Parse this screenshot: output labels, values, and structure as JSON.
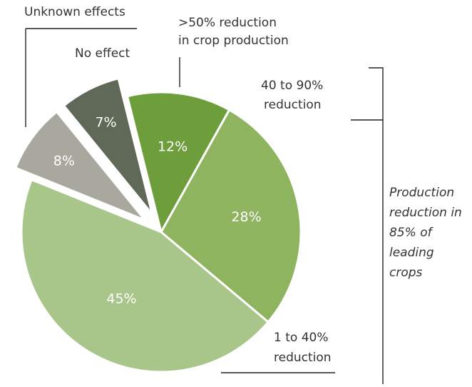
{
  "chart_data": {
    "type": "pie",
    "slices": [
      {
        "label": ">50% reduction in crop production",
        "value": 12,
        "display": "12%",
        "color": "#6e9e3c"
      },
      {
        "label": "40 to 90% reduction",
        "value": 28,
        "display": "28%",
        "color": "#8fb460"
      },
      {
        "label": "1 to 40% reduction",
        "value": 45,
        "display": "45%",
        "color": "#a8c58a"
      },
      {
        "label": "Unknown effects",
        "value": 8,
        "display": "8%",
        "color": "#a8a89f"
      },
      {
        "label": "No effect",
        "value": 7,
        "display": "7%",
        "color": "#606957"
      }
    ],
    "annotations": {
      "unknown_effects": "Unknown effects",
      "no_effect": "No effect",
      "gt50_line1": ">50% reduction",
      "gt50_line2": "in crop production",
      "r40_90_line1": "40 to 90%",
      "r40_90_line2": "reduction",
      "r1_40_line1": "1 to 40%",
      "r1_40_line2": "reduction",
      "bracket_lines": [
        "Production",
        "reduction in",
        "85% of",
        "leading",
        "crops"
      ]
    }
  }
}
